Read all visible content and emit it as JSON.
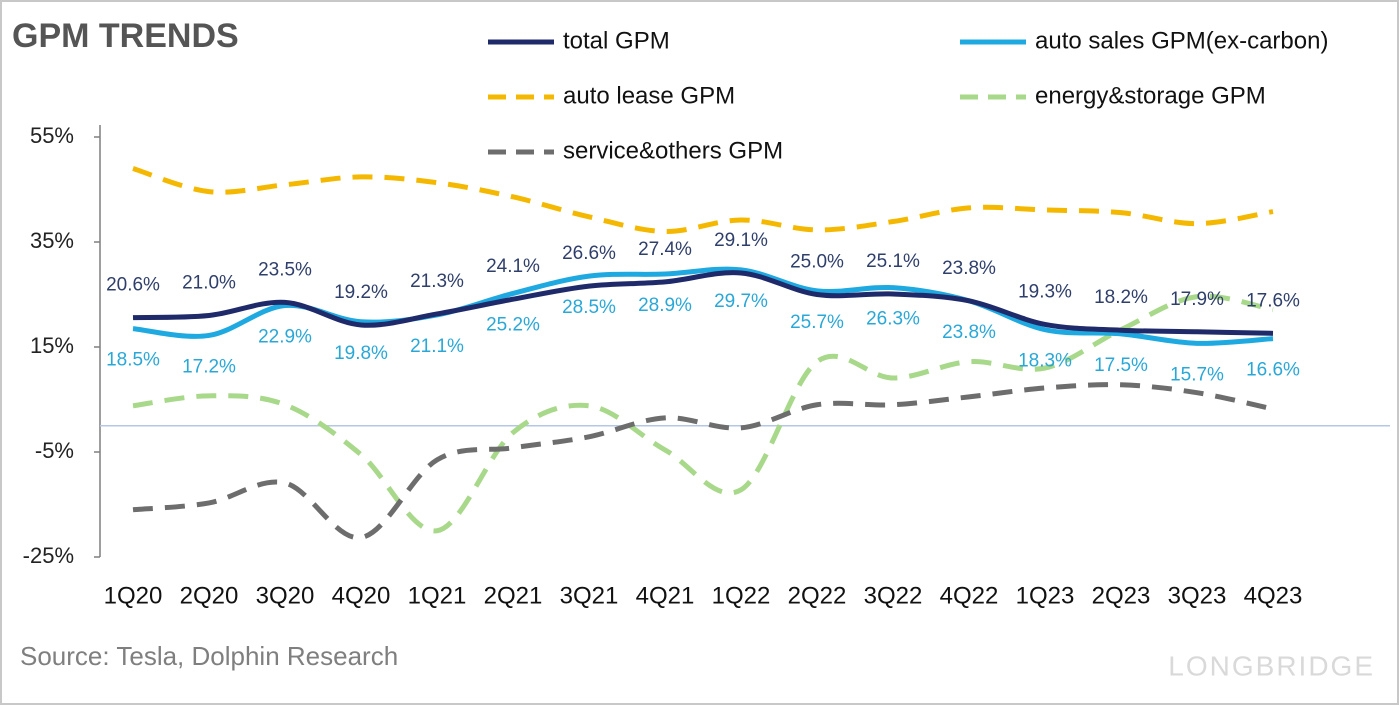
{
  "chart_data": {
    "type": "line",
    "title": "GPM TRENDS",
    "source": "Source: Tesla,  Dolphin Research",
    "watermark": "LONGBRIDGE",
    "categories": [
      "1Q20",
      "2Q20",
      "3Q20",
      "4Q20",
      "1Q21",
      "2Q21",
      "3Q21",
      "4Q21",
      "1Q22",
      "2Q22",
      "3Q22",
      "4Q22",
      "1Q23",
      "2Q23",
      "3Q23",
      "4Q23"
    ],
    "ylim": [
      -25,
      55
    ],
    "yticks": [
      {
        "value": -25,
        "label": "-25%"
      },
      {
        "value": -5,
        "label": "-5%"
      },
      {
        "value": 15,
        "label": "15%"
      },
      {
        "value": 35,
        "label": "35%"
      },
      {
        "value": 55,
        "label": "55%"
      }
    ],
    "legend": "top",
    "smooth": true,
    "series": [
      {
        "name": "total GPM",
        "color": "#1f2a6b",
        "style": "solid",
        "label_side": "above",
        "values": [
          20.6,
          21.0,
          23.5,
          19.2,
          21.3,
          24.1,
          26.6,
          27.4,
          29.1,
          25.0,
          25.1,
          23.8,
          19.3,
          18.2,
          17.9,
          17.6
        ],
        "value_labels": [
          "20.6%",
          "21.0%",
          "23.5%",
          "19.2%",
          "21.3%",
          "24.1%",
          "26.6%",
          "27.4%",
          "29.1%",
          "25.0%",
          "25.1%",
          "23.8%",
          "19.3%",
          "18.2%",
          "17.9%",
          "17.6%"
        ]
      },
      {
        "name": "auto sales GPM(ex-carbon)",
        "color": "#1fa9e1",
        "style": "solid",
        "label_side": "below",
        "values": [
          18.5,
          17.2,
          22.9,
          19.8,
          21.1,
          25.2,
          28.5,
          28.9,
          29.7,
          25.7,
          26.3,
          23.8,
          18.3,
          17.5,
          15.7,
          16.6
        ],
        "value_labels": [
          "18.5%",
          "17.2%",
          "22.9%",
          "19.8%",
          "21.1%",
          "25.2%",
          "28.5%",
          "28.9%",
          "29.7%",
          "25.7%",
          "26.3%",
          "23.8%",
          "18.3%",
          "17.5%",
          "15.7%",
          "16.6%"
        ]
      },
      {
        "name": "auto lease GPM",
        "color": "#f5b800",
        "style": "dashed",
        "values": [
          49,
          44.6,
          45.9,
          47.4,
          46.3,
          43.6,
          39.8,
          37,
          39.2,
          37.3,
          38.9,
          41.5,
          41.1,
          40.6,
          38.5,
          40.8
        ]
      },
      {
        "name": "energy&storage GPM",
        "color": "#a8d88a",
        "style": "dashed",
        "values": [
          3.8,
          5.7,
          4,
          -5.5,
          -20,
          -1.3,
          3.8,
          -4.6,
          -12.2,
          12.2,
          9.1,
          12.2,
          11,
          18.3,
          24.6,
          22.1
        ]
      },
      {
        "name": "service&others GPM",
        "color": "#6d6d6d",
        "style": "dashed",
        "values": [
          -16,
          -14.7,
          -10.9,
          -21.3,
          -6.5,
          -4.2,
          -2.1,
          1.5,
          -0.4,
          4,
          4,
          5.5,
          7.2,
          7.8,
          6.3,
          3.2
        ]
      }
    ]
  }
}
